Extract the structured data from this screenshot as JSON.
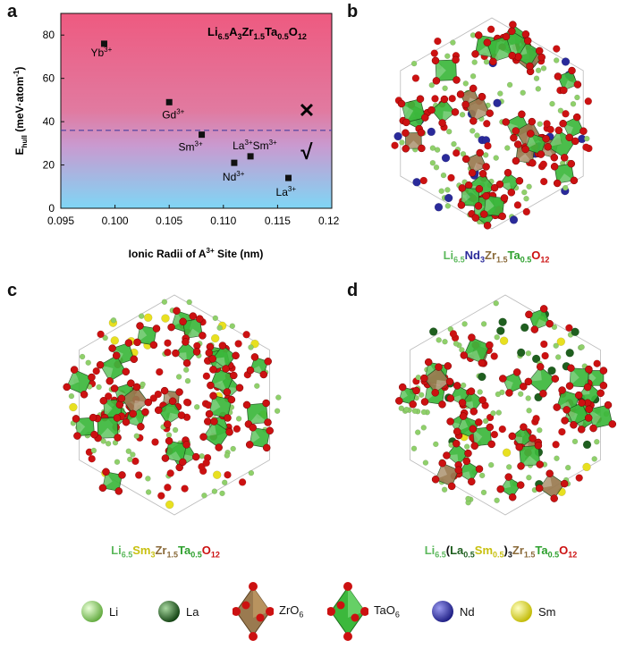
{
  "panels": {
    "a": "a",
    "b": "b",
    "c": "c",
    "d": "d"
  },
  "chart_data": {
    "type": "scatter",
    "title_parts": {
      "base": "Li",
      "s1": "6.5",
      "m1": "A",
      "s2": "3",
      "m2": "Zr",
      "s3": "1.5",
      "m3": "Ta",
      "s4": "0.5",
      "m4": "O",
      "s5": "12"
    },
    "xlabel": "Ionic Radii of A3+ Site (nm)",
    "xlabel_parts": {
      "pre": "Ionic Radii of A",
      "sup": "3+",
      "post": " Site (nm)"
    },
    "ylabel_parts": {
      "pre": "E",
      "sub": "hull",
      "post": " (meV·atom",
      "sup": "-1",
      "end": ")"
    },
    "xlim": [
      0.095,
      0.12
    ],
    "ylim": [
      0,
      90
    ],
    "xticks": [
      "0.095",
      "0.100",
      "0.105",
      "0.110",
      "0.115",
      "0.120"
    ],
    "yticks": [
      "0",
      "20",
      "40",
      "60",
      "80"
    ],
    "threshold": 36,
    "points": [
      {
        "element": "Yb",
        "x": 0.099,
        "y": 76,
        "sup": "3+"
      },
      {
        "element": "Gd",
        "x": 0.105,
        "y": 49,
        "sup": "3+"
      },
      {
        "element": "Sm",
        "x": 0.108,
        "y": 34,
        "sup": "3+"
      },
      {
        "element": "La",
        "x": 0.1125,
        "y": 24,
        "sup": "3+",
        "label2": "Sm",
        "sup2": "3+"
      },
      {
        "element": "Nd",
        "x": 0.111,
        "y": 21,
        "sup": "3+"
      },
      {
        "element": "La",
        "x": 0.116,
        "y": 14,
        "sup": "3+"
      }
    ],
    "cross_mark": "✕",
    "check_mark": "√",
    "colors": {
      "top": "#ee5a80",
      "mid": "#e07ab8",
      "bottom": "#7fd3f3",
      "dashed": "#4a3fa0",
      "marker": "#111111"
    }
  },
  "formulas": {
    "b": {
      "li": "Li",
      "li_sub": "6.5",
      "a": "Nd",
      "a_sub": "3",
      "zr": "Zr",
      "zr_sub": "1.5",
      "ta": "Ta",
      "ta_sub": "0.5",
      "o": "O",
      "o_sub": "12"
    },
    "c": {
      "li": "Li",
      "li_sub": "6.5",
      "a": "Sm",
      "a_sub": "3",
      "zr": "Zr",
      "zr_sub": "1.5",
      "ta": "Ta",
      "ta_sub": "0.5",
      "o": "O",
      "o_sub": "12"
    },
    "d": {
      "li": "Li",
      "li_sub": "6.5",
      "open": "(",
      "la": "La",
      "la_sub": "0.5",
      "sm": "Sm",
      "sm_sub": "0.5",
      "close": ")",
      "close_sub": "3",
      "zr": "Zr",
      "zr_sub": "1.5",
      "ta": "Ta",
      "ta_sub": "0.5",
      "o": "O",
      "o_sub": "12"
    }
  },
  "legend": {
    "li": "Li",
    "la": "La",
    "zro": {
      "pre": "ZrO",
      "sub": "6"
    },
    "tao": {
      "pre": "TaO",
      "sub": "6"
    },
    "nd": "Nd",
    "sm": "Sm",
    "colors": {
      "li": "#8fd06a",
      "la": "#1f5f1f",
      "zr": "#9a7a50",
      "ta": "#3cb83c",
      "o": "#cc1111",
      "nd": "#2a2a9a",
      "sm": "#e8e020"
    }
  }
}
